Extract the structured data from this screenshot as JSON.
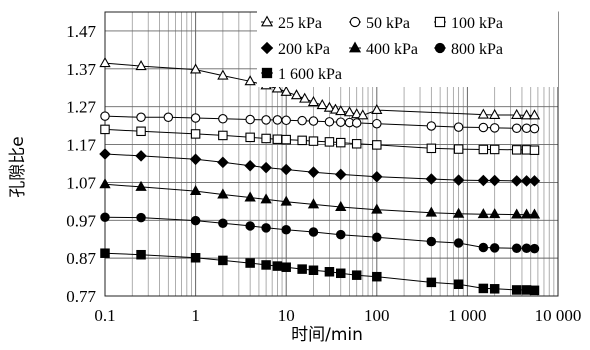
{
  "chart_data": {
    "type": "line",
    "xlabel": "时间/min",
    "ylabel": "孔隙比e",
    "xscale": "log",
    "xlim": [
      0.1,
      10000
    ],
    "ylim": [
      0.77,
      1.52
    ],
    "x_tick_labels": [
      "0.1",
      "1",
      "10",
      "100",
      "1 000",
      "10 000"
    ],
    "y_tick_labels": [
      "0.77",
      "0.87",
      "0.97",
      "1.07",
      "1.17",
      "1.27",
      "1.37",
      "1.47"
    ],
    "grid": true,
    "legend_position": "top-right",
    "series": [
      {
        "name": "25 kPa",
        "marker": "open-triangle",
        "x": [
          0.1,
          0.25,
          1,
          2,
          4,
          6,
          8,
          10,
          13,
          16,
          20,
          25,
          30,
          35,
          40,
          50,
          60,
          70,
          100,
          1500,
          2000,
          3500,
          4500,
          5500
        ],
        "y": [
          1.385,
          1.377,
          1.368,
          1.352,
          1.337,
          1.326,
          1.318,
          1.309,
          1.3,
          1.291,
          1.282,
          1.274,
          1.267,
          1.262,
          1.258,
          1.255,
          1.25,
          1.247,
          1.261,
          1.249,
          1.248,
          1.248,
          1.247,
          1.247
        ]
      },
      {
        "name": "50 kPa",
        "marker": "open-circle",
        "x": [
          0.1,
          0.25,
          0.5,
          1,
          2,
          4,
          6,
          8,
          10,
          15,
          20,
          30,
          40,
          50,
          60,
          100,
          400,
          800,
          1500,
          2000,
          3500,
          4500,
          5500
        ],
        "y": [
          1.245,
          1.242,
          1.242,
          1.24,
          1.238,
          1.236,
          1.235,
          1.235,
          1.234,
          1.233,
          1.232,
          1.23,
          1.229,
          1.228,
          1.227,
          1.225,
          1.219,
          1.216,
          1.215,
          1.214,
          1.213,
          1.213,
          1.212
        ]
      },
      {
        "name": "100 kPa",
        "marker": "open-square",
        "x": [
          0.1,
          0.25,
          1,
          2,
          4,
          6,
          8,
          10,
          15,
          20,
          30,
          40,
          60,
          100,
          400,
          800,
          1500,
          2000,
          3500,
          4500,
          5500
        ],
        "y": [
          1.21,
          1.205,
          1.198,
          1.194,
          1.189,
          1.186,
          1.184,
          1.183,
          1.181,
          1.179,
          1.177,
          1.175,
          1.172,
          1.169,
          1.16,
          1.158,
          1.157,
          1.157,
          1.156,
          1.156,
          1.155
        ]
      },
      {
        "name": "200 kPa",
        "marker": "filled-diamond",
        "x": [
          0.1,
          0.25,
          1,
          2,
          4,
          6,
          10,
          20,
          40,
          100,
          400,
          800,
          1500,
          2000,
          3500,
          4500,
          5500
        ],
        "y": [
          1.145,
          1.14,
          1.131,
          1.123,
          1.114,
          1.109,
          1.104,
          1.097,
          1.091,
          1.085,
          1.079,
          1.076,
          1.075,
          1.075,
          1.074,
          1.074,
          1.074
        ]
      },
      {
        "name": "400 kPa",
        "marker": "filled-triangle",
        "x": [
          0.1,
          0.25,
          1,
          2,
          4,
          6,
          10,
          20,
          40,
          100,
          400,
          800,
          1500,
          2000,
          3500,
          4500,
          5500
        ],
        "y": [
          1.065,
          1.058,
          1.047,
          1.038,
          1.03,
          1.025,
          1.019,
          1.012,
          1.005,
          0.998,
          0.99,
          0.987,
          0.986,
          0.986,
          0.985,
          0.985,
          0.985
        ]
      },
      {
        "name": "800 kPa",
        "marker": "filled-circle",
        "x": [
          0.1,
          0.25,
          1,
          2,
          4,
          6,
          10,
          20,
          40,
          100,
          400,
          800,
          1500,
          2000,
          3500,
          4500,
          5500
        ],
        "y": [
          0.978,
          0.977,
          0.969,
          0.962,
          0.955,
          0.95,
          0.945,
          0.939,
          0.932,
          0.925,
          0.914,
          0.91,
          0.898,
          0.897,
          0.896,
          0.896,
          0.895
        ]
      },
      {
        "name": "1 600 kPa",
        "marker": "filled-square",
        "x": [
          0.1,
          0.25,
          1,
          2,
          4,
          6,
          8,
          10,
          15,
          20,
          30,
          40,
          60,
          100,
          400,
          800,
          1500,
          2000,
          3500,
          4500,
          5500
        ],
        "y": [
          0.883,
          0.879,
          0.871,
          0.864,
          0.857,
          0.852,
          0.849,
          0.846,
          0.841,
          0.838,
          0.834,
          0.83,
          0.825,
          0.821,
          0.806,
          0.801,
          0.79,
          0.789,
          0.786,
          0.786,
          0.785
        ]
      }
    ]
  }
}
